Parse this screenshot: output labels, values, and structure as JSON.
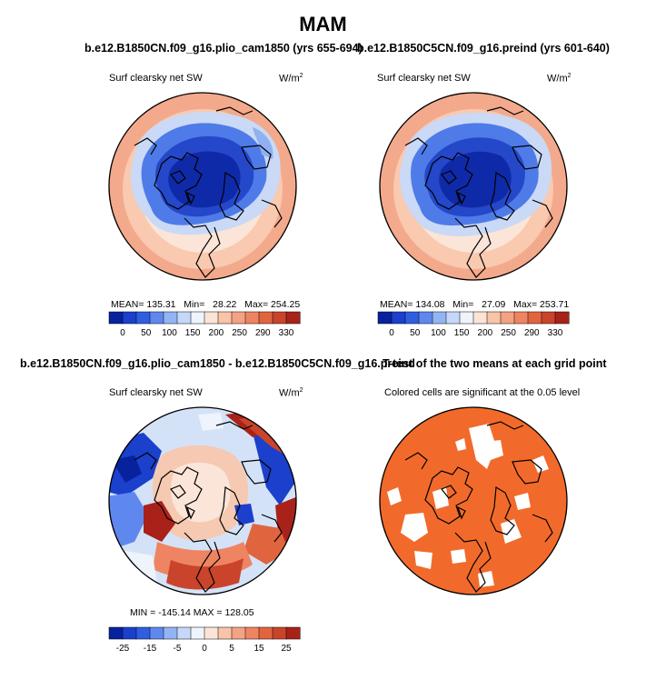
{
  "figure": {
    "season": "MAM"
  },
  "panels": [
    {
      "title": "b.e12.B1850CN.f09_g16.plio_cam1850 (yrs 655-694)",
      "variable": "Surf clearsky net SW",
      "units_base": "W/m",
      "units_exp": "2",
      "stats": {
        "mean_label": "MEAN=",
        "mean": "135.31",
        "min_label": "Min=",
        "min": "28.22",
        "max_label": "Max=",
        "max": "254.25"
      }
    },
    {
      "title": "b.e12.B1850C5CN.f09_g16.preind (yrs 601-640)",
      "variable": "Surf clearsky net SW",
      "units_base": "W/m",
      "units_exp": "2",
      "stats": {
        "mean_label": "MEAN=",
        "mean": "134.08",
        "min_label": "Min=",
        "min": "27.09",
        "max_label": "Max=",
        "max": "253.71"
      }
    },
    {
      "title": "b.e12.B1850CN.f09_g16.plio_cam1850 - b.e12.B1850C5CN.f09_g16.preind",
      "variable": "Surf clearsky net SW",
      "units_base": "W/m",
      "units_exp": "2",
      "stats_text": "MIN = -145.14  MAX = 128.05"
    },
    {
      "title": "T-test of the two means at each grid point",
      "subtitle": "Colored cells are significant at the 0.05 level"
    }
  ],
  "colorbars": {
    "absolute": {
      "labels": [
        "0",
        "50",
        "100",
        "150",
        "200",
        "250",
        "290",
        "330"
      ],
      "colors": [
        "#08229e",
        "#1a40cc",
        "#2f5fe0",
        "#5f88ee",
        "#93b4f4",
        "#c5d8fa",
        "#eef3fc",
        "#fbe4d6",
        "#f9c4a7",
        "#f4a284",
        "#ef8462",
        "#e0653f",
        "#c9442a",
        "#a8221a"
      ]
    },
    "difference": {
      "labels": [
        "-25",
        "-15",
        "-5",
        "0",
        "5",
        "15",
        "25"
      ],
      "colors": [
        "#08229e",
        "#1a40cc",
        "#2f5fe0",
        "#5f88ee",
        "#93b4f4",
        "#c5d8fa",
        "#eef3fc",
        "#fbe4d6",
        "#f9c4a7",
        "#f4a284",
        "#ef8462",
        "#e0653f",
        "#c9442a",
        "#a8221a"
      ]
    }
  },
  "colors": {
    "ttest_fill": "#f26a2b",
    "coast": "#000000"
  }
}
